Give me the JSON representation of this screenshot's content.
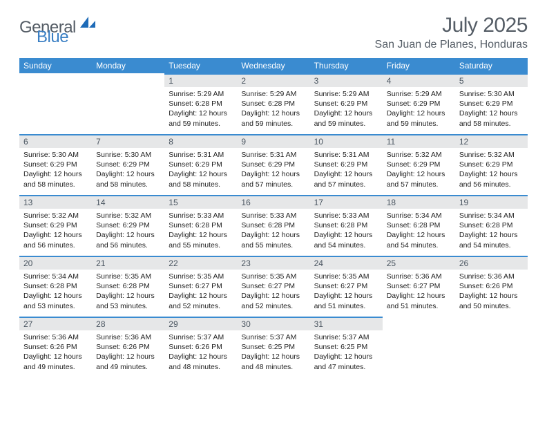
{
  "brand": {
    "general": "General",
    "blue": "Blue"
  },
  "title": "July 2025",
  "location": "San Juan de Planes, Honduras",
  "colors": {
    "header_bg": "#3a8bd0",
    "header_text": "#ffffff",
    "daynum_bg": "#e6e7e8",
    "daynum_text": "#4a5560",
    "rule": "#3a8bd0",
    "title_color": "#555d66",
    "logo_gray": "#555d66",
    "logo_blue": "#3a7fc4"
  },
  "weekdays": [
    "Sunday",
    "Monday",
    "Tuesday",
    "Wednesday",
    "Thursday",
    "Friday",
    "Saturday"
  ],
  "weeks": [
    [
      null,
      null,
      {
        "n": "1",
        "sr": "5:29 AM",
        "ss": "6:28 PM",
        "dl": "12 hours and 59 minutes."
      },
      {
        "n": "2",
        "sr": "5:29 AM",
        "ss": "6:28 PM",
        "dl": "12 hours and 59 minutes."
      },
      {
        "n": "3",
        "sr": "5:29 AM",
        "ss": "6:29 PM",
        "dl": "12 hours and 59 minutes."
      },
      {
        "n": "4",
        "sr": "5:29 AM",
        "ss": "6:29 PM",
        "dl": "12 hours and 59 minutes."
      },
      {
        "n": "5",
        "sr": "5:30 AM",
        "ss": "6:29 PM",
        "dl": "12 hours and 58 minutes."
      }
    ],
    [
      {
        "n": "6",
        "sr": "5:30 AM",
        "ss": "6:29 PM",
        "dl": "12 hours and 58 minutes."
      },
      {
        "n": "7",
        "sr": "5:30 AM",
        "ss": "6:29 PM",
        "dl": "12 hours and 58 minutes."
      },
      {
        "n": "8",
        "sr": "5:31 AM",
        "ss": "6:29 PM",
        "dl": "12 hours and 58 minutes."
      },
      {
        "n": "9",
        "sr": "5:31 AM",
        "ss": "6:29 PM",
        "dl": "12 hours and 57 minutes."
      },
      {
        "n": "10",
        "sr": "5:31 AM",
        "ss": "6:29 PM",
        "dl": "12 hours and 57 minutes."
      },
      {
        "n": "11",
        "sr": "5:32 AM",
        "ss": "6:29 PM",
        "dl": "12 hours and 57 minutes."
      },
      {
        "n": "12",
        "sr": "5:32 AM",
        "ss": "6:29 PM",
        "dl": "12 hours and 56 minutes."
      }
    ],
    [
      {
        "n": "13",
        "sr": "5:32 AM",
        "ss": "6:29 PM",
        "dl": "12 hours and 56 minutes."
      },
      {
        "n": "14",
        "sr": "5:32 AM",
        "ss": "6:29 PM",
        "dl": "12 hours and 56 minutes."
      },
      {
        "n": "15",
        "sr": "5:33 AM",
        "ss": "6:28 PM",
        "dl": "12 hours and 55 minutes."
      },
      {
        "n": "16",
        "sr": "5:33 AM",
        "ss": "6:28 PM",
        "dl": "12 hours and 55 minutes."
      },
      {
        "n": "17",
        "sr": "5:33 AM",
        "ss": "6:28 PM",
        "dl": "12 hours and 54 minutes."
      },
      {
        "n": "18",
        "sr": "5:34 AM",
        "ss": "6:28 PM",
        "dl": "12 hours and 54 minutes."
      },
      {
        "n": "19",
        "sr": "5:34 AM",
        "ss": "6:28 PM",
        "dl": "12 hours and 54 minutes."
      }
    ],
    [
      {
        "n": "20",
        "sr": "5:34 AM",
        "ss": "6:28 PM",
        "dl": "12 hours and 53 minutes."
      },
      {
        "n": "21",
        "sr": "5:35 AM",
        "ss": "6:28 PM",
        "dl": "12 hours and 53 minutes."
      },
      {
        "n": "22",
        "sr": "5:35 AM",
        "ss": "6:27 PM",
        "dl": "12 hours and 52 minutes."
      },
      {
        "n": "23",
        "sr": "5:35 AM",
        "ss": "6:27 PM",
        "dl": "12 hours and 52 minutes."
      },
      {
        "n": "24",
        "sr": "5:35 AM",
        "ss": "6:27 PM",
        "dl": "12 hours and 51 minutes."
      },
      {
        "n": "25",
        "sr": "5:36 AM",
        "ss": "6:27 PM",
        "dl": "12 hours and 51 minutes."
      },
      {
        "n": "26",
        "sr": "5:36 AM",
        "ss": "6:26 PM",
        "dl": "12 hours and 50 minutes."
      }
    ],
    [
      {
        "n": "27",
        "sr": "5:36 AM",
        "ss": "6:26 PM",
        "dl": "12 hours and 49 minutes."
      },
      {
        "n": "28",
        "sr": "5:36 AM",
        "ss": "6:26 PM",
        "dl": "12 hours and 49 minutes."
      },
      {
        "n": "29",
        "sr": "5:37 AM",
        "ss": "6:26 PM",
        "dl": "12 hours and 48 minutes."
      },
      {
        "n": "30",
        "sr": "5:37 AM",
        "ss": "6:25 PM",
        "dl": "12 hours and 48 minutes."
      },
      {
        "n": "31",
        "sr": "5:37 AM",
        "ss": "6:25 PM",
        "dl": "12 hours and 47 minutes."
      },
      null,
      null
    ]
  ],
  "labels": {
    "sunrise": "Sunrise: ",
    "sunset": "Sunset: ",
    "daylight": "Daylight: "
  }
}
